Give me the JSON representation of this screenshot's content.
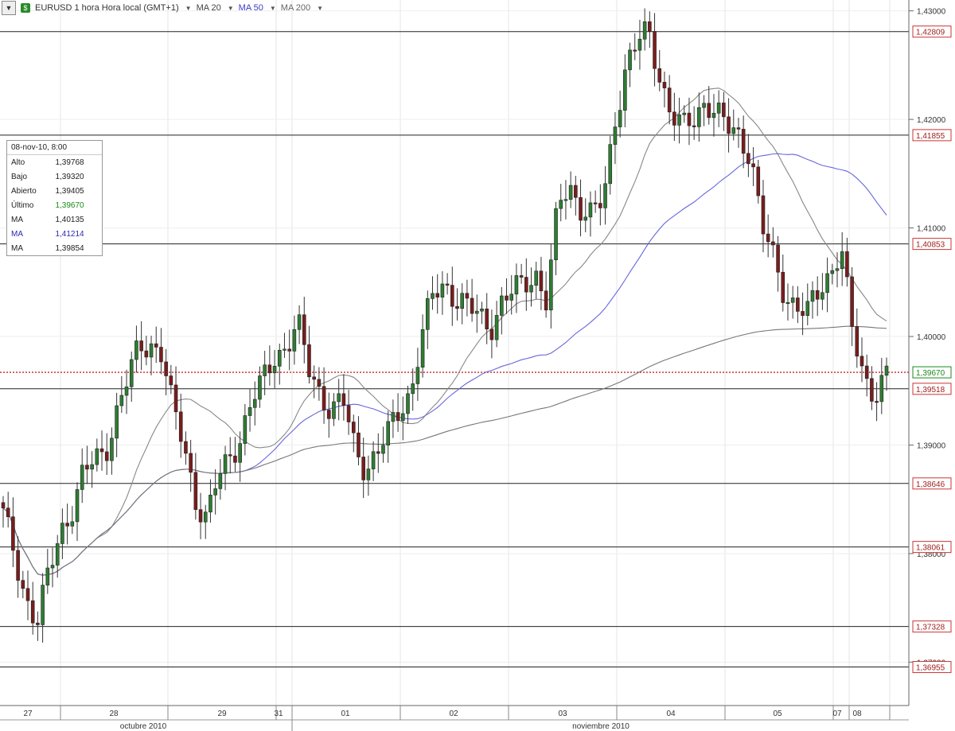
{
  "toolbar": {
    "symbol": "EURUSD 1 hora Hora local (GMT+1)",
    "ma20": "MA 20",
    "ma50": "MA 50",
    "ma200": "MA 200"
  },
  "info": {
    "date": "08-nov-10, 8:00",
    "rows": [
      {
        "label": "Alto",
        "value": "1,39768"
      },
      {
        "label": "Bajo",
        "value": "1,39320"
      },
      {
        "label": "Abierto",
        "value": "1,39405"
      },
      {
        "label": "Último",
        "value": "1,39670"
      },
      {
        "label": "MA",
        "value": "1,40135"
      },
      {
        "label": "MA",
        "value": "1,41214"
      },
      {
        "label": "MA",
        "value": "1,39854"
      }
    ]
  },
  "colors": {
    "bull": "#2e7d32",
    "bear": "#7a1d1d",
    "ma20": "#888888",
    "ma50": "#6666dd",
    "ma200": "#777777",
    "last": "#cc2222"
  },
  "chart_data": {
    "type": "candlestick",
    "symbol": "EURUSD",
    "timeframe": "1 hora",
    "ylim": [
      1.366,
      1.431
    ],
    "y_ticks": [
      "1,43000",
      "1,42000",
      "1,41000",
      "1,40000",
      "1,39000",
      "1,38000",
      "1,37000"
    ],
    "day_labels": [
      "27",
      "28",
      "29",
      "31",
      "01",
      "02",
      "03",
      "04",
      "05",
      "07",
      "08"
    ],
    "month_labels": [
      "octubre 2010",
      "noviembre 2010"
    ],
    "h_levels": [
      "1,42809",
      "1,41855",
      "1,40853",
      "1,39518",
      "1,38646",
      "1,38061",
      "1,37328",
      "1,36955"
    ],
    "last_price": "1,39670",
    "close_path": [
      1.3835,
      1.38,
      1.376,
      1.3735,
      1.378,
      1.382,
      1.384,
      1.387,
      1.3885,
      1.3895,
      1.393,
      1.396,
      1.399,
      1.3995,
      1.3985,
      1.393,
      1.39,
      1.385,
      1.383,
      1.387,
      1.389,
      1.391,
      1.394,
      1.396,
      1.3985,
      1.399,
      1.401,
      1.397,
      1.395,
      1.393,
      1.394,
      1.39,
      1.388,
      1.389,
      1.391,
      1.3935,
      1.395,
      1.4,
      1.404,
      1.405,
      1.4035,
      1.4025,
      1.402,
      1.401,
      1.403,
      1.404,
      1.405,
      1.406,
      1.403,
      1.412,
      1.414,
      1.412,
      1.411,
      1.4125,
      1.42,
      1.425,
      1.427,
      1.428,
      1.424,
      1.4205,
      1.419,
      1.42,
      1.422,
      1.4205,
      1.419,
      1.4185,
      1.417,
      1.41,
      1.407,
      1.404,
      1.403,
      1.402,
      1.404,
      1.406,
      1.4085,
      1.4,
      1.396,
      1.395,
      1.3967
    ],
    "series": [
      {
        "name": "MA 20",
        "last": "1,40135"
      },
      {
        "name": "MA 50",
        "last": "1,41214"
      },
      {
        "name": "MA 200",
        "last": "1,39854"
      }
    ]
  }
}
